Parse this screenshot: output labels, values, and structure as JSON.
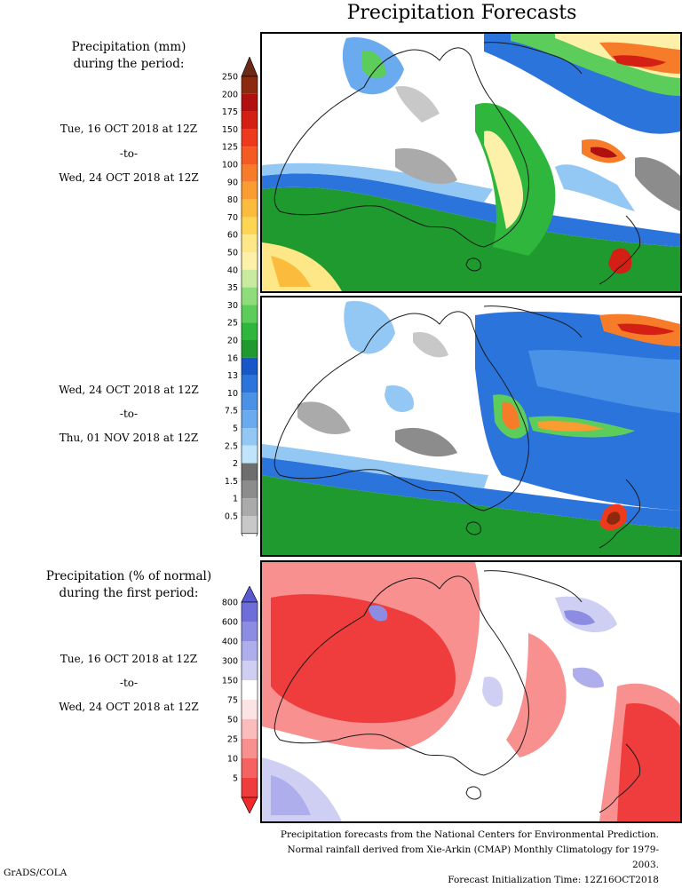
{
  "title": "Precipitation Forecasts",
  "amount_section": {
    "heading_line1": "Precipitation (mm)",
    "heading_line2": "during the period:",
    "period1": {
      "start": "Tue, 16 OCT 2018 at 12Z",
      "separator": "-to-",
      "end": "Wed, 24 OCT 2018 at 12Z"
    },
    "period2": {
      "start": "Wed, 24 OCT 2018 at 12Z",
      "separator": "-to-",
      "end": "Thu, 01 NOV 2018 at 12Z"
    },
    "colorbar": {
      "labels": [
        "250",
        "200",
        "175",
        "150",
        "125",
        "100",
        "90",
        "80",
        "70",
        "60",
        "50",
        "40",
        "35",
        "30",
        "25",
        "20",
        "16",
        "13",
        "10",
        "7.5",
        "5",
        "2.5",
        "2",
        "1.5",
        "1",
        "0.5"
      ],
      "colors": [
        "#8b2a0e",
        "#b01010",
        "#d42014",
        "#ee3a1c",
        "#f45a22",
        "#f77c2a",
        "#f99c32",
        "#fbbc3e",
        "#fcd552",
        "#fde787",
        "#fdf0a8",
        "#c8eba0",
        "#8fdc7a",
        "#5ccc5a",
        "#2fb63c",
        "#1e9a2e",
        "#1658c8",
        "#2a74dc",
        "#4a92e6",
        "#6aaaee",
        "#94c8f4",
        "#c0e4fa",
        "#6e6e6e",
        "#8c8c8c",
        "#aaaaaa",
        "#c8c8c8"
      ],
      "top_cap_color": "#6b2a18",
      "bottom_cap_color": "#ffffff"
    }
  },
  "percent_section": {
    "heading_line1": "Precipitation (% of normal)",
    "heading_line2": "during the first period:",
    "period": {
      "start": "Tue, 16 OCT 2018 at 12Z",
      "separator": "-to-",
      "end": "Wed, 24 OCT 2018 at 12Z"
    },
    "colorbar": {
      "labels": [
        "800",
        "600",
        "400",
        "300",
        "150",
        "75",
        "50",
        "25",
        "10",
        "5"
      ],
      "colors": [
        "#6e6ed8",
        "#8c8ce2",
        "#aeaeec",
        "#cfcff4",
        "#ffffff",
        "#fde4e4",
        "#fbbcbc",
        "#f89090",
        "#f46262",
        "#ef3c3c"
      ],
      "top_cap_color": "#5a5ad0",
      "bottom_cap_color": "#ee2a2a"
    }
  },
  "footer": {
    "line1": "Precipitation forecasts from the National Centers for Environmental Prediction.",
    "line2": "Normal rainfall derived from Xie-Arkin (CMAP) Monthly Climatology for 1979-2003.",
    "line3": "Forecast Initialization Time: 12Z16OCT2018"
  },
  "credit": "GrADS/COLA"
}
